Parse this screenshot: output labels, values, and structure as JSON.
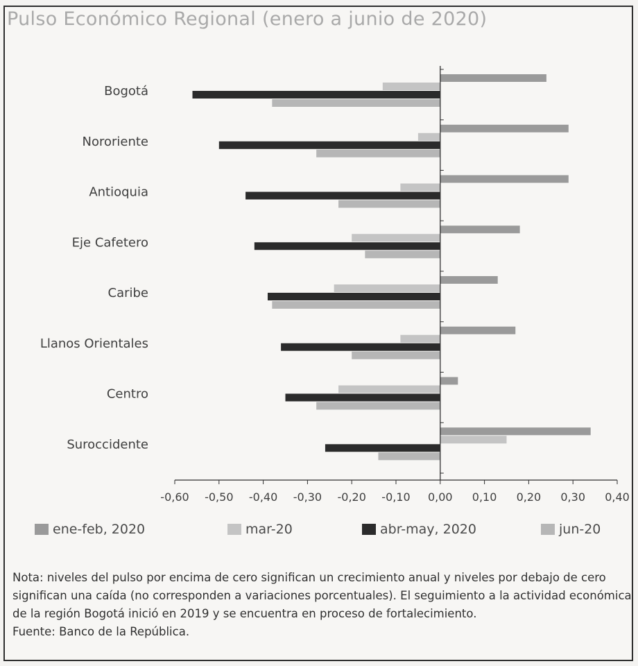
{
  "title": "Pulso Económico Regional (enero a junio de 2020)",
  "note": "Nota: niveles del pulso por encima de cero significan un crecimiento anual y niveles por debajo de cero significan una caída (no corresponden a variaciones porcentuales). El seguimiento a la actividad económica de la región Bogotá inició en 2019 y se encuentra en proceso de fortalecimiento.",
  "source": "Fuente: Banco de la República.",
  "chart_data": {
    "type": "bar",
    "orientation": "horizontal",
    "title": "Pulso Económico Regional (enero a junio de 2020)",
    "categories": [
      "Bogotá",
      "Nororiente",
      "Antioquia",
      "Eje Cafetero",
      "Caribe",
      "Llanos Orientales",
      "Centro",
      "Suroccidente"
    ],
    "xlim": [
      -0.6,
      0.4
    ],
    "xticks": [
      "-0,60",
      "-0,50",
      "-0,40",
      "-0,30",
      "-0,20",
      "-0,10",
      "0,00",
      "0,10",
      "0,20",
      "0,30",
      "0,40"
    ],
    "grid": false,
    "legend_position": "bottom",
    "series": [
      {
        "name": "ene-feb, 2020",
        "color": "#9a9a9a",
        "values": [
          0.24,
          0.29,
          0.29,
          0.18,
          0.13,
          0.17,
          0.04,
          0.34
        ]
      },
      {
        "name": "mar-20",
        "color": "#c4c4c4",
        "values": [
          -0.13,
          -0.05,
          -0.09,
          -0.2,
          -0.24,
          -0.09,
          -0.23,
          0.15
        ]
      },
      {
        "name": "abr-may, 2020",
        "color": "#2b2b2b",
        "values": [
          -0.56,
          -0.5,
          -0.44,
          -0.42,
          -0.39,
          -0.36,
          -0.35,
          -0.26
        ]
      },
      {
        "name": "jun-20",
        "color": "#b6b6b6",
        "values": [
          -0.38,
          -0.28,
          -0.23,
          -0.17,
          -0.38,
          -0.2,
          -0.28,
          -0.14
        ]
      }
    ]
  }
}
